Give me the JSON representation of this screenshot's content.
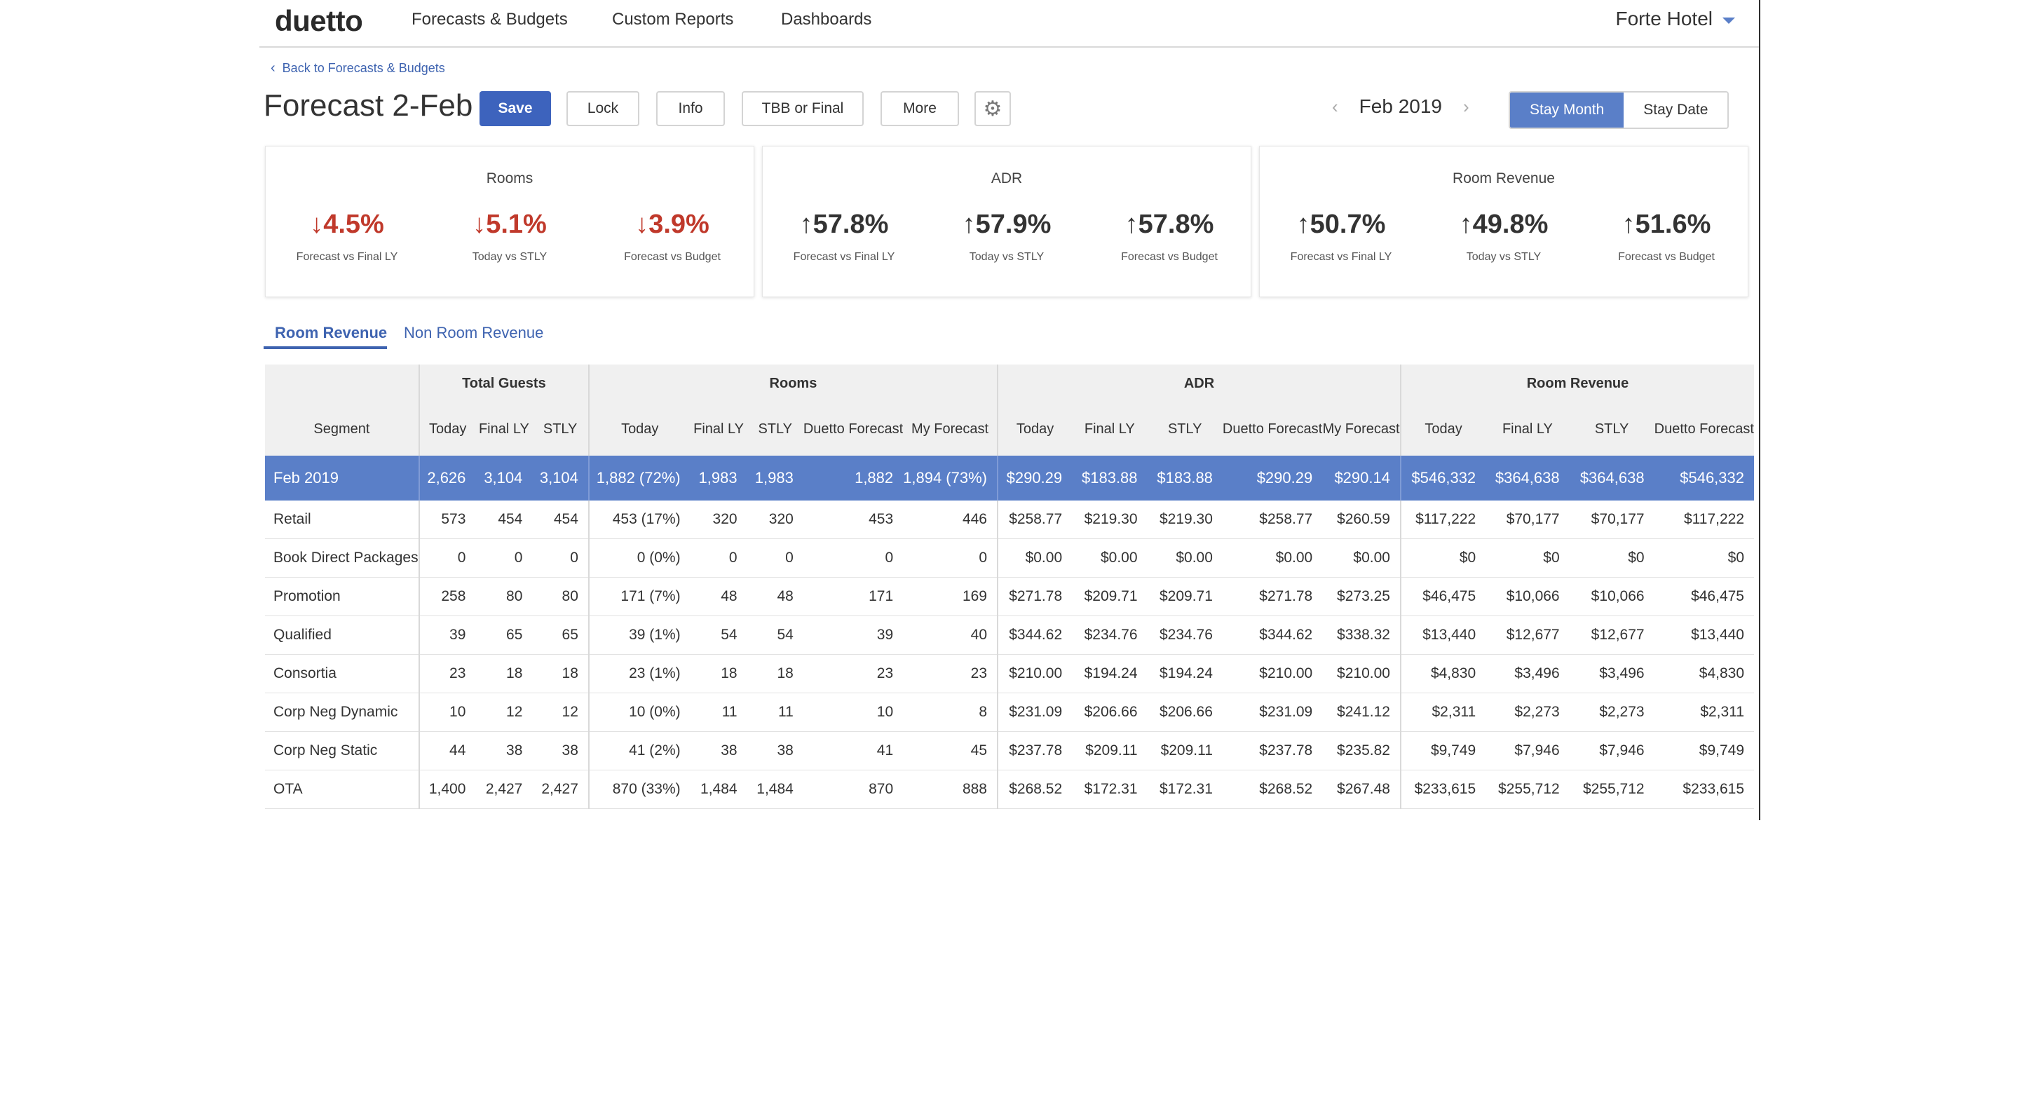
{
  "nav": {
    "logo": "duetto",
    "links": [
      "Forecasts & Budgets",
      "Custom Reports",
      "Dashboards"
    ],
    "hotel": "Forte Hotel"
  },
  "header": {
    "back": "Back to Forecasts & Budgets",
    "title": "Forecast 2-Feb",
    "buttons": [
      "Save",
      "Lock",
      "Info",
      "TBB or Final",
      "More"
    ],
    "month": "Feb 2019",
    "toggle": [
      "Stay Month",
      "Stay Date"
    ]
  },
  "kpis": [
    {
      "title": "Rooms",
      "metrics": [
        {
          "value": "4.5%",
          "dir": "down",
          "label": "Forecast vs Final LY"
        },
        {
          "value": "5.1%",
          "dir": "down",
          "label": "Today vs STLY"
        },
        {
          "value": "3.9%",
          "dir": "down",
          "label": "Forecast vs Budget"
        }
      ]
    },
    {
      "title": "ADR",
      "metrics": [
        {
          "value": "57.8%",
          "dir": "up",
          "label": "Forecast vs Final LY"
        },
        {
          "value": "57.9%",
          "dir": "up",
          "label": "Today vs STLY"
        },
        {
          "value": "57.8%",
          "dir": "up",
          "label": "Forecast vs Budget"
        }
      ]
    },
    {
      "title": "Room Revenue",
      "metrics": [
        {
          "value": "50.7%",
          "dir": "up",
          "label": "Forecast vs Final LY"
        },
        {
          "value": "49.8%",
          "dir": "up",
          "label": "Today vs STLY"
        },
        {
          "value": "51.6%",
          "dir": "up",
          "label": "Forecast vs Budget"
        }
      ]
    }
  ],
  "tabs": [
    "Room Revenue",
    "Non Room Revenue"
  ],
  "table": {
    "groups": [
      "Total Guests",
      "Rooms",
      "ADR",
      "Room Revenue"
    ],
    "segment_header": "Segment",
    "sub_headers": {
      "guests": [
        "Today",
        "Final LY",
        "STLY"
      ],
      "rooms": [
        "Today",
        "Final LY",
        "STLY",
        "Duetto Forecast",
        "My Forecast"
      ],
      "adr": [
        "Today",
        "Final LY",
        "STLY",
        "Duetto Forecast",
        "My Forecast"
      ],
      "revenue": [
        "Today",
        "Final LY",
        "STLY",
        "Duetto Forecast"
      ]
    },
    "total": [
      "Feb 2019",
      "2,626",
      "3,104",
      "3,104",
      "1,882 (72%)",
      "1,983",
      "1,983",
      "1,882",
      "1,894 (73%)",
      "$290.29",
      "$183.88",
      "$183.88",
      "$290.29",
      "$290.14",
      "$546,332",
      "$364,638",
      "$364,638",
      "$546,332"
    ],
    "rows": [
      [
        "Retail",
        "573",
        "454",
        "454",
        "453 (17%)",
        "320",
        "320",
        "453",
        "446",
        "$258.77",
        "$219.30",
        "$219.30",
        "$258.77",
        "$260.59",
        "$117,222",
        "$70,177",
        "$70,177",
        "$117,222"
      ],
      [
        "Book Direct Packages",
        "0",
        "0",
        "0",
        "0 (0%)",
        "0",
        "0",
        "0",
        "0",
        "$0.00",
        "$0.00",
        "$0.00",
        "$0.00",
        "$0.00",
        "$0",
        "$0",
        "$0",
        "$0"
      ],
      [
        "Promotion",
        "258",
        "80",
        "80",
        "171 (7%)",
        "48",
        "48",
        "171",
        "169",
        "$271.78",
        "$209.71",
        "$209.71",
        "$271.78",
        "$273.25",
        "$46,475",
        "$10,066",
        "$10,066",
        "$46,475"
      ],
      [
        "Qualified",
        "39",
        "65",
        "65",
        "39 (1%)",
        "54",
        "54",
        "39",
        "40",
        "$344.62",
        "$234.76",
        "$234.76",
        "$344.62",
        "$338.32",
        "$13,440",
        "$12,677",
        "$12,677",
        "$13,440"
      ],
      [
        "Consortia",
        "23",
        "18",
        "18",
        "23 (1%)",
        "18",
        "18",
        "23",
        "23",
        "$210.00",
        "$194.24",
        "$194.24",
        "$210.00",
        "$210.00",
        "$4,830",
        "$3,496",
        "$3,496",
        "$4,830"
      ],
      [
        "Corp Neg Dynamic",
        "10",
        "12",
        "12",
        "10 (0%)",
        "11",
        "11",
        "10",
        "8",
        "$231.09",
        "$206.66",
        "$206.66",
        "$231.09",
        "$241.12",
        "$2,311",
        "$2,273",
        "$2,273",
        "$2,311"
      ],
      [
        "Corp Neg Static",
        "44",
        "38",
        "38",
        "41 (2%)",
        "38",
        "38",
        "41",
        "45",
        "$237.78",
        "$209.11",
        "$209.11",
        "$237.78",
        "$235.82",
        "$9,749",
        "$7,946",
        "$7,946",
        "$9,749"
      ],
      [
        "OTA",
        "1,400",
        "2,427",
        "2,427",
        "870 (33%)",
        "1,484",
        "1,484",
        "870",
        "888",
        "$268.52",
        "$172.31",
        "$172.31",
        "$268.52",
        "$267.48",
        "$233,615",
        "$255,712",
        "$255,712",
        "$233,615"
      ]
    ]
  },
  "icons": {
    "gear": "gear-icon",
    "back": "chevron-left-icon",
    "dropdown": "caret-down-icon"
  },
  "colors": {
    "accent": "#3d63bd",
    "highlight_row": "#5a7fc8",
    "down": "#c0392b"
  }
}
